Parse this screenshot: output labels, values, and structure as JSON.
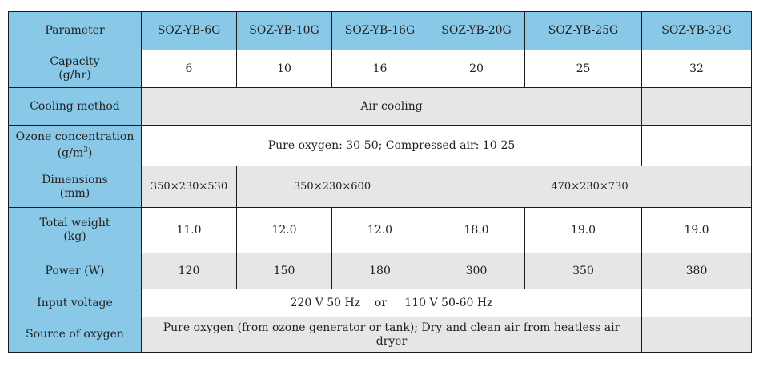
{
  "table": {
    "header": {
      "parameter": "Parameter",
      "models": [
        "SOZ-YB-6G",
        "SOZ-YB-10G",
        "SOZ-YB-16G",
        "SOZ-YB-20G",
        "SOZ-YB-25G",
        "SOZ-YB-32G"
      ]
    },
    "capacity": {
      "label_line1": "Capacity",
      "label_line2": "(g/hr)",
      "values": [
        "6",
        "10",
        "16",
        "20",
        "25",
        "32"
      ]
    },
    "cooling": {
      "label": "Cooling method",
      "value": "Air cooling",
      "last": ""
    },
    "ozone": {
      "label_line1": "Ozone concentration",
      "label_line2_pre": "(g/m",
      "label_line2_sup": "3",
      "label_line2_post": ")",
      "value": "Pure oxygen: 30-50; Compressed air: 10-25",
      "last": ""
    },
    "dimensions": {
      "label_line1": "Dimensions",
      "label_line2": "(mm)",
      "values": [
        "350×230×530",
        "350×230×600",
        "470×230×730"
      ]
    },
    "weight": {
      "label_line1": "Total weight",
      "label_line2": "(kg)",
      "values": [
        "11.0",
        "12.0",
        "12.0",
        "18.0",
        "19.0",
        "19.0"
      ]
    },
    "power": {
      "label": "Power (W)",
      "values": [
        "120",
        "150",
        "180",
        "300",
        "350",
        "380"
      ]
    },
    "voltage": {
      "label": "Input voltage",
      "value": "220 V 50 Hz    or     110 V 50-60 Hz",
      "last": ""
    },
    "oxygen": {
      "label": "Source of oxygen",
      "value": "Pure oxygen (from ozone generator or tank); Dry and clean air from heatless air dryer",
      "last": ""
    }
  }
}
